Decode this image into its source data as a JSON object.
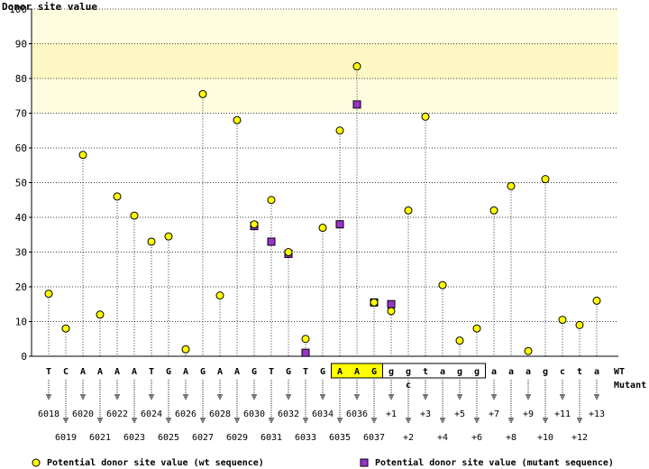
{
  "chart_data": {
    "type": "scatter",
    "ylabel": "Donor site value",
    "ylim": [
      0,
      100
    ],
    "yticks": [
      0,
      10,
      20,
      30,
      40,
      50,
      60,
      70,
      80,
      90,
      100
    ],
    "grid": true,
    "bands": [
      {
        "from": 90,
        "to": 100,
        "color": "#fffde0"
      },
      {
        "from": 80,
        "to": 90,
        "color": "#fff8c4"
      },
      {
        "from": 70,
        "to": 80,
        "color": "#fffde0"
      }
    ],
    "sequence": [
      "T",
      "C",
      "A",
      "A",
      "A",
      "A",
      "T",
      "G",
      "A",
      "G",
      "A",
      "A",
      "G",
      "T",
      "G",
      "T",
      "G",
      "A",
      "A",
      "G",
      "g",
      "g",
      "t",
      "a",
      "g",
      "g",
      "a",
      "a",
      "a",
      "g",
      "c",
      "t",
      "a"
    ],
    "positions": [
      "6018",
      "6019",
      "6020",
      "6021",
      "6022",
      "6023",
      "6024",
      "6025",
      "6026",
      "6027",
      "6028",
      "6029",
      "6030",
      "6031",
      "6032",
      "6033",
      "6034",
      "6035",
      "6036",
      "6037",
      "+1",
      "+2",
      "+3",
      "+4",
      "+5",
      "+6",
      "+7",
      "+8",
      "+9",
      "+10",
      "+11",
      "+12",
      "+13"
    ],
    "exon_highlight": [
      "A",
      "A",
      "G"
    ],
    "mutation": {
      "index": 21,
      "letter": "c"
    },
    "wt_label": "WT",
    "mutant_label": "Mutant",
    "series": [
      {
        "name": "Potential donor site value (wt sequence)",
        "color": "#ffff00",
        "shape": "circle",
        "values": [
          18,
          8,
          58,
          12,
          46,
          40.5,
          33,
          34.5,
          2,
          75.5,
          17.5,
          68,
          38,
          45,
          30,
          5,
          37,
          65,
          83.5,
          15.5,
          13,
          42,
          69,
          20.5,
          4.5,
          8,
          42,
          49,
          1.5,
          51,
          10.5,
          9,
          16
        ]
      },
      {
        "name": "Potential donor site value (mutant sequence)",
        "color": "#9933cc",
        "shape": "square",
        "values": [
          null,
          null,
          null,
          null,
          null,
          null,
          null,
          null,
          null,
          null,
          null,
          null,
          37.5,
          33,
          29.5,
          1,
          null,
          38,
          72.5,
          15.5,
          15,
          null,
          null,
          null,
          null,
          null,
          null,
          null,
          null,
          null,
          null,
          null,
          null
        ]
      }
    ]
  }
}
